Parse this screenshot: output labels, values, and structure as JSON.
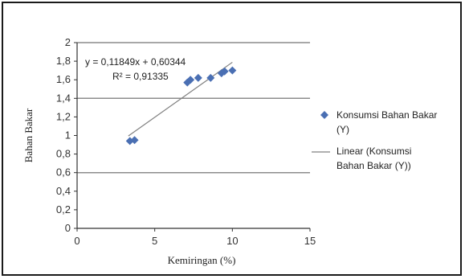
{
  "chart_data": {
    "type": "scatter",
    "xlabel": "Kemiringan (%)",
    "ylabel": "Bahan Bakar",
    "xlim": [
      0,
      15
    ],
    "ylim": [
      0,
      2
    ],
    "x_ticks": [
      "0",
      "5",
      "10",
      "15"
    ],
    "y_ticks": [
      "0",
      "0,2",
      "0,4",
      "0,6",
      "0,8",
      "1",
      "1,2",
      "1,4",
      "1,6",
      "1,8",
      "2"
    ],
    "grid": "horizontal at 0.6, 1.4 and 2",
    "series": [
      {
        "name": "Konsumsi Bahan Bakar (Y)",
        "marker": "diamond",
        "color": "#4a6fb3",
        "points": [
          {
            "x": 3.4,
            "y": 0.94
          },
          {
            "x": 3.7,
            "y": 0.95
          },
          {
            "x": 7.1,
            "y": 1.57
          },
          {
            "x": 7.3,
            "y": 1.6
          },
          {
            "x": 7.8,
            "y": 1.62
          },
          {
            "x": 8.6,
            "y": 1.62
          },
          {
            "x": 9.3,
            "y": 1.67
          },
          {
            "x": 9.5,
            "y": 1.69
          },
          {
            "x": 10.0,
            "y": 1.7
          }
        ]
      }
    ],
    "trendline": {
      "name": "Linear (Konsumsi Bahan Bakar (Y))",
      "slope": 0.11849,
      "intercept": 0.60344,
      "x_range": [
        3.3,
        10.0
      ],
      "color": "#808080",
      "equation": "y = 0,11849x + 0,60344",
      "r2": "R² = 0,91335"
    },
    "legend": {
      "position": "right",
      "items": [
        {
          "lines": [
            "Konsumsi Bahan Bakar",
            "(Y)"
          ],
          "symbol": "diamond"
        },
        {
          "lines": [
            "Linear (Konsumsi",
            "Bahan Bakar (Y))"
          ],
          "symbol": "line"
        }
      ]
    }
  }
}
